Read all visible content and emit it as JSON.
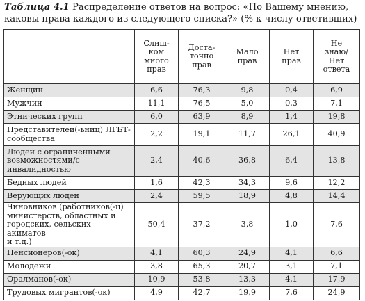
{
  "caption": {
    "label": "Таблица 4.1",
    "text": " Распределение ответов на вопрос: «По Вашему мнению, каковы права каждого из следующего списка?» (% к числу ответивших)"
  },
  "table": {
    "headers": [
      "",
      "Слиш-\nком\nмного\nправ",
      "Доста-\nточно\nправ",
      "Мало\nправ",
      "Нет\nправ",
      "Не\nзнаю/\nНет\nответа"
    ],
    "rows": [
      {
        "name": "Женщин",
        "values": [
          "6,6",
          "76,3",
          "9,8",
          "0,4",
          "6,9"
        ]
      },
      {
        "name": "Мужчин",
        "values": [
          "11,1",
          "76,5",
          "5,0",
          "0,3",
          "7,1"
        ]
      },
      {
        "name": "Этнических групп",
        "values": [
          "6,0",
          "63,9",
          "8,9",
          "1,4",
          "19,8"
        ]
      },
      {
        "name": "Представителей(-ьниц) ЛГБТ-\nсообщества",
        "values": [
          "2,2",
          "19,1",
          "11,7",
          "26,1",
          "40,9"
        ]
      },
      {
        "name": "Людей с ограниченными\nвозможностями/с\nинвалидностью",
        "values": [
          "2,4",
          "40,6",
          "36,8",
          "6,4",
          "13,8"
        ]
      },
      {
        "name": "Бедных людей",
        "values": [
          "1,6",
          "42,3",
          "34,3",
          "9,6",
          "12,2"
        ]
      },
      {
        "name": "Верующих людей",
        "values": [
          "2,4",
          "59,5",
          "18,9",
          "4,8",
          "14,4"
        ]
      },
      {
        "name": "Чиновников (работников(-ц)\nминистерств, областных и\nгородских, сельских акиматов\nи т.д.)",
        "values": [
          "50,4",
          "37,2",
          "3,8",
          "1,0",
          "7,6"
        ]
      },
      {
        "name": "Пенсионеров(-ок)",
        "values": [
          "4,1",
          "60,3",
          "24,9",
          "4,1",
          "6,6"
        ]
      },
      {
        "name": "Молодежи",
        "values": [
          "3,8",
          "65,3",
          "20,7",
          "3,1",
          "7,1"
        ]
      },
      {
        "name": "Оралманов(-ок)",
        "values": [
          "10,9",
          "53,8",
          "13,3",
          "4,1",
          "17,9"
        ]
      },
      {
        "name": "Трудовых мигрантов(-ок)",
        "values": [
          "4,9",
          "42,7",
          "19,9",
          "7,6",
          "24,9"
        ]
      }
    ]
  }
}
